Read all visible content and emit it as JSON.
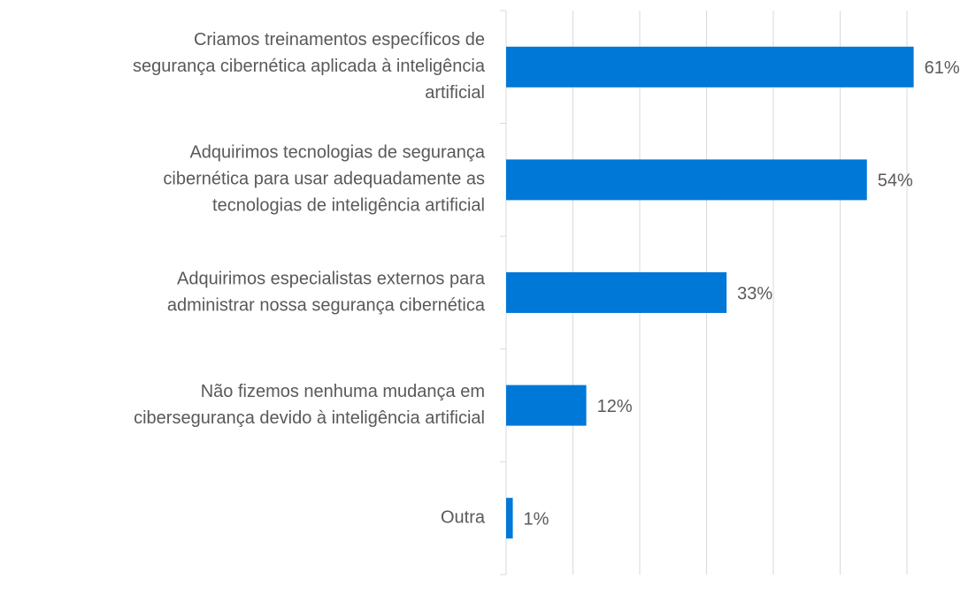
{
  "chart_data": {
    "type": "bar",
    "orientation": "horizontal",
    "categories": [
      [
        "Criamos treinamentos específicos de",
        "segurança cibernética aplicada à inteligência",
        "artificial"
      ],
      [
        "Adquirimos tecnologias de segurança",
        "cibernética para usar adequadamente as",
        "tecnologias de inteligência artificial"
      ],
      [
        "Adquirimos especialistas externos para",
        "administrar nossa segurança cibernética"
      ],
      [
        "Não fizemos nenhuma mudança em",
        "cibersegurança devido à inteligência artificial"
      ],
      [
        "Outra"
      ]
    ],
    "values": [
      61,
      54,
      33,
      12,
      1
    ],
    "value_labels": [
      "61%",
      "54%",
      "33%",
      "12%",
      "1%"
    ],
    "color": "#0078d7",
    "xlim": [
      0,
      69
    ],
    "xticks": [
      0,
      10,
      20,
      30,
      40,
      50,
      60
    ],
    "grid": true
  }
}
